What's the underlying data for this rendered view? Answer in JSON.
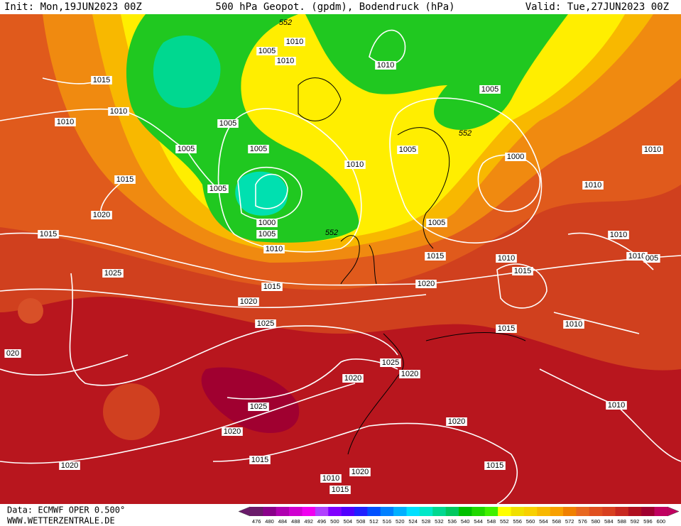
{
  "header": {
    "init": "Init: Mon,19JUN2023 00Z",
    "title": "500 hPa Geopot. (gpdm), Bodendruck (hPa)",
    "valid": "Valid: Tue,27JUN2023 00Z"
  },
  "footer": {
    "source": "Data: ECMWF OPER 0.500°",
    "website": "WWW.WETTERZENTRALE.DE"
  },
  "isobar_labels": [
    "1015",
    "1010",
    "1010",
    "1005",
    "1015",
    "1020",
    "1015",
    "1005",
    "1005",
    "1005",
    "1000",
    "1005",
    "1010",
    "1005",
    "1010",
    "1010",
    "1010",
    "1005",
    "1005",
    "1010",
    "1000",
    "1010",
    "1010",
    "1010",
    "1010",
    "005",
    "1005",
    "1015",
    "1010",
    "1015",
    "1020",
    "1025",
    "1015",
    "1020",
    "1025",
    "1015",
    "1010",
    "020",
    "1025",
    "1020",
    "1020",
    "1025",
    "1020",
    "1020",
    "1010",
    "1015",
    "1020",
    "1015",
    "1010",
    "1020",
    "1015",
    "552",
    "552",
    "552"
  ],
  "colorbar": {
    "labels": [
      476,
      480,
      484,
      488,
      492,
      496,
      500,
      504,
      508,
      512,
      516,
      520,
      524,
      528,
      532,
      536,
      540,
      544,
      548,
      552,
      556,
      560,
      564,
      568,
      572,
      576,
      580,
      584,
      588,
      592,
      596,
      600
    ],
    "colors": [
      "#6a1a6a",
      "#8a008a",
      "#b000b0",
      "#d000d0",
      "#f000f0",
      "#b040ff",
      "#8000ff",
      "#5000ff",
      "#2020ff",
      "#0050ff",
      "#0080ff",
      "#00b0ff",
      "#00e0ff",
      "#00e8c8",
      "#00d890",
      "#00c860",
      "#00c000",
      "#20d800",
      "#40f000",
      "#ffff00",
      "#f0e000",
      "#f8d000",
      "#f8b800",
      "#f8a000",
      "#f08000",
      "#e86820",
      "#e05020",
      "#d84020",
      "#c82820",
      "#b01020",
      "#a00030",
      "#c00060"
    ]
  }
}
